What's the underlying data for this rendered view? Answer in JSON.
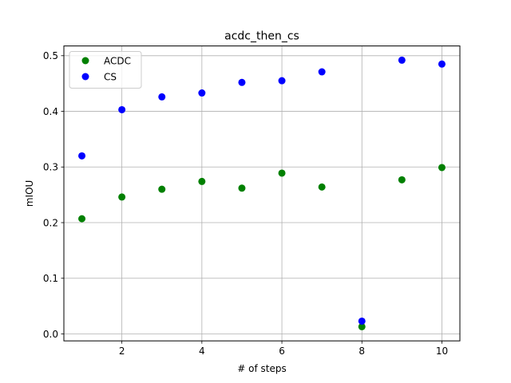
{
  "chart_data": {
    "type": "scatter",
    "title": "acdc_then_cs",
    "xlabel": "# of steps",
    "ylabel": "mIOU",
    "xlim": [
      0.55,
      10.45
    ],
    "ylim": [
      -0.0125,
      0.5175
    ],
    "xticks": [
      2,
      4,
      6,
      8,
      10
    ],
    "yticks": [
      0.0,
      0.1,
      0.2,
      0.3,
      0.4,
      0.5
    ],
    "xtick_labels": [
      "2",
      "4",
      "6",
      "8",
      "10"
    ],
    "ytick_labels": [
      "0.0",
      "0.1",
      "0.2",
      "0.3",
      "0.4",
      "0.5"
    ],
    "grid": true,
    "legend_position": "top-left",
    "series": [
      {
        "name": "ACDC",
        "color": "#008000",
        "x": [
          1,
          2,
          3,
          4,
          5,
          6,
          7,
          8,
          9,
          10
        ],
        "y": [
          0.207,
          0.246,
          0.26,
          0.274,
          0.262,
          0.289,
          0.264,
          0.013,
          0.277,
          0.299
        ]
      },
      {
        "name": "CS",
        "color": "#0000ff",
        "x": [
          1,
          2,
          3,
          4,
          5,
          6,
          7,
          8,
          9,
          10
        ],
        "y": [
          0.32,
          0.403,
          0.426,
          0.433,
          0.452,
          0.455,
          0.471,
          0.023,
          0.492,
          0.485
        ]
      }
    ]
  }
}
